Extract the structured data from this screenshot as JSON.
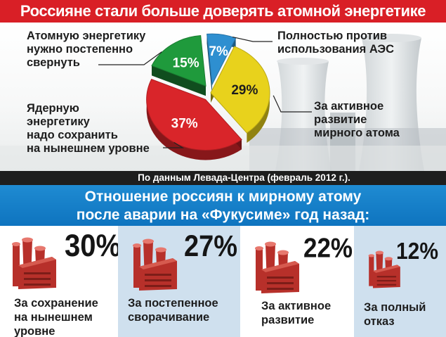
{
  "title": "Россияне стали больше доверять атомной энергетике",
  "chart_data": [
    {
      "type": "pie",
      "title": "Россияне стали больше доверять атомной энергетике",
      "labels": [
        "Полностью против использования АЭС",
        "За активное развитие мирного атома",
        "Ядерную энергетику надо сохранить на нынешнем уровне",
        "Атомную энергетику нужно постепенно свернуть"
      ],
      "values": [
        7,
        29,
        37,
        15
      ],
      "value_labels": [
        "7%",
        "29%",
        "37%",
        "15%"
      ],
      "colors": [
        "#2e8fd0",
        "#e8d21c",
        "#d9252a",
        "#1f9a3c"
      ],
      "exploded": [
        true,
        false,
        true,
        true
      ],
      "source": "По данным Левада-Центра (февраль 2012 г.)."
    },
    {
      "type": "bar",
      "title": "Отношение россиян к мирному атому после аварии на «Фукусиме» год назад:",
      "categories": [
        "За сохранение на нынешнем уровне",
        "За постепенное сворачивание",
        "За активное развитие",
        "За полный отказ"
      ],
      "values": [
        30,
        27,
        22,
        12
      ],
      "value_labels": [
        "30%",
        "27%",
        "22%",
        "12%"
      ],
      "unit": "%"
    }
  ],
  "labels": {
    "against": [
      "Полностью против",
      "использования АЭС"
    ],
    "development": [
      "За активное",
      "развитие",
      "мирного атома"
    ],
    "keep": [
      "Ядерную",
      "энергетику",
      "надо сохранить",
      "на нынешнем уровне"
    ],
    "phaseout": [
      "Атомную энергетику",
      "нужно постепенно",
      "свернуть"
    ]
  },
  "source": "По данным Левада-Центра (февраль 2012 г.).",
  "subtitle": [
    "Отношение россиян к мирному атому",
    "после аварии на «Фукусиме» год назад:"
  ],
  "columns": [
    {
      "value": "30%",
      "caption": [
        "За сохранение",
        "на нынешнем",
        "уровне"
      ]
    },
    {
      "value": "27%",
      "caption": [
        "За постепенное",
        "сворачивание"
      ]
    },
    {
      "value": "22%",
      "caption": [
        "За активное",
        "развитие"
      ]
    },
    {
      "value": "12%",
      "caption": [
        "За полный",
        "отказ"
      ]
    }
  ],
  "colors": {
    "title_bg": "#d91f26",
    "blue_bar": "#0e74bf",
    "shade": "#cfe0ee",
    "factory": "#b7302a"
  }
}
